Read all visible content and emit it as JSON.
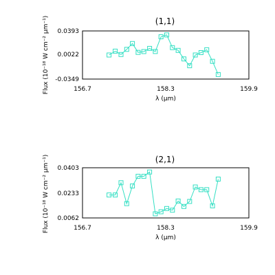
{
  "chart_data": [
    {
      "type": "line",
      "title": "(1,1)",
      "xlabel": "λ (μm)",
      "ylabel": "Flux (10⁻¹⁸ W cm⁻² μm⁻¹)",
      "xlim": [
        156.7,
        159.9
      ],
      "ylim": [
        -0.0349,
        0.0393
      ],
      "x_ticks": [
        "156.7",
        "158.3",
        "159.9"
      ],
      "y_ticks": [
        "0.0393",
        "0.0022",
        "-0.0349"
      ],
      "grid": false,
      "color": "#33dfc3",
      "marker": "square",
      "series": [
        {
          "x": [
            157.21,
            157.33,
            157.44,
            157.55,
            157.66,
            157.77,
            157.88,
            157.99,
            158.1,
            158.21,
            158.32,
            158.43,
            158.54,
            158.65,
            158.76,
            158.87,
            158.98,
            159.09,
            159.2,
            159.31
          ],
          "y": [
            0.0022,
            0.0081,
            0.0029,
            0.0109,
            0.0199,
            0.0062,
            0.0075,
            0.0124,
            0.0076,
            0.0303,
            0.0331,
            0.0135,
            0.0093,
            -0.0038,
            -0.0143,
            0.0022,
            0.0059,
            0.0103,
            -0.0076,
            -0.0279
          ]
        }
      ]
    },
    {
      "type": "line",
      "title": "(2,1)",
      "xlabel": "λ (μm)",
      "ylabel": "Flux (10⁻¹⁸ W cm⁻² μm⁻¹)",
      "xlim": [
        156.7,
        159.9
      ],
      "ylim": [
        0.0062,
        0.0403
      ],
      "x_ticks": [
        "156.7",
        "158.3",
        "159.9"
      ],
      "y_ticks": [
        "0.0403",
        "0.0233",
        "0.0062"
      ],
      "grid": false,
      "color": "#33dfc3",
      "marker": "square",
      "series": [
        {
          "x": [
            157.21,
            157.33,
            157.44,
            157.55,
            157.66,
            157.77,
            157.88,
            157.99,
            158.1,
            158.21,
            158.32,
            158.43,
            158.54,
            158.65,
            158.76,
            158.87,
            158.98,
            159.09,
            159.2,
            159.31
          ],
          "y": [
            0.0218,
            0.0218,
            0.0301,
            0.0159,
            0.0279,
            0.0345,
            0.0345,
            0.0374,
            0.009,
            0.0104,
            0.0126,
            0.0115,
            0.0177,
            0.014,
            0.0174,
            0.0272,
            0.0254,
            0.0254,
            0.0144,
            0.0326
          ]
        }
      ]
    }
  ]
}
